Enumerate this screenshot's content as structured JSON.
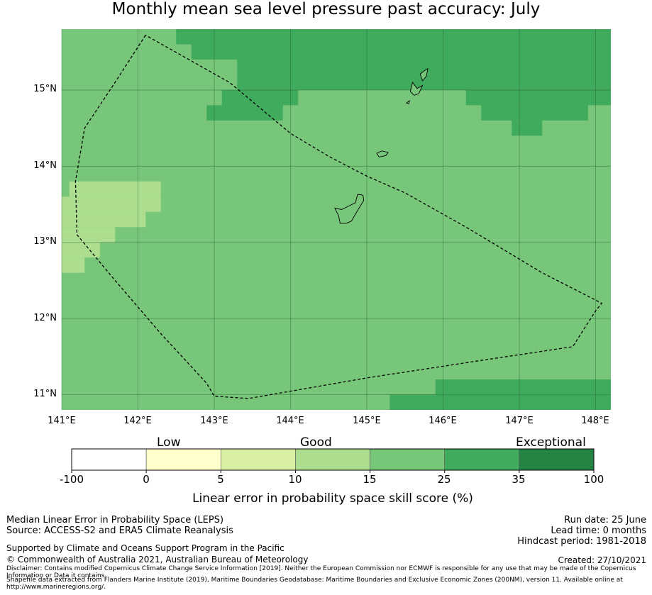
{
  "title": "Monthly mean sea level pressure past accuracy: July",
  "axes": {
    "lat_ticks": [
      "15°N",
      "14°N",
      "13°N",
      "12°N",
      "11°N"
    ],
    "lon_ticks": [
      "141°E",
      "142°E",
      "143°E",
      "144°E",
      "145°E",
      "146°E",
      "147°E",
      "148°E"
    ]
  },
  "map_data": {
    "lon_range": [
      141.0,
      148.2
    ],
    "lat_range": [
      10.8,
      15.8
    ],
    "lat_tick_values": [
      15,
      14,
      13,
      12,
      11
    ],
    "lon_tick_values": [
      141,
      142,
      143,
      144,
      145,
      146,
      147,
      148
    ],
    "base_category": 4,
    "regions": [
      {
        "category": 5,
        "lon": [
          142.5,
          148.2
        ],
        "lat": [
          15.6,
          15.8
        ]
      },
      {
        "category": 5,
        "lon": [
          142.7,
          148.2
        ],
        "lat": [
          15.4,
          15.6
        ]
      },
      {
        "category": 5,
        "lon": [
          143.3,
          148.2
        ],
        "lat": [
          15.0,
          15.4
        ]
      },
      {
        "category": 5,
        "lon": [
          143.1,
          144.1
        ],
        "lat": [
          14.8,
          15.0
        ]
      },
      {
        "category": 5,
        "lon": [
          142.9,
          143.9
        ],
        "lat": [
          14.6,
          14.8
        ]
      },
      {
        "category": 5,
        "lon": [
          146.3,
          148.2
        ],
        "lat": [
          14.8,
          15.0
        ]
      },
      {
        "category": 5,
        "lon": [
          146.5,
          147.9
        ],
        "lat": [
          14.6,
          14.8
        ]
      },
      {
        "category": 5,
        "lon": [
          146.9,
          147.3
        ],
        "lat": [
          14.4,
          14.6
        ]
      },
      {
        "category": 3,
        "lon": [
          141.1,
          142.3
        ],
        "lat": [
          13.6,
          13.8
        ]
      },
      {
        "category": 3,
        "lon": [
          141.0,
          142.3
        ],
        "lat": [
          13.4,
          13.6
        ]
      },
      {
        "category": 3,
        "lon": [
          141.0,
          142.1
        ],
        "lat": [
          13.2,
          13.4
        ]
      },
      {
        "category": 3,
        "lon": [
          141.0,
          141.7
        ],
        "lat": [
          13.0,
          13.2
        ]
      },
      {
        "category": 3,
        "lon": [
          141.0,
          141.5
        ],
        "lat": [
          12.8,
          13.0
        ]
      },
      {
        "category": 3,
        "lon": [
          141.0,
          141.3
        ],
        "lat": [
          12.6,
          12.8
        ]
      },
      {
        "category": 5,
        "lon": [
          145.9,
          148.2
        ],
        "lat": [
          11.0,
          11.2
        ]
      },
      {
        "category": 5,
        "lon": [
          145.3,
          148.2
        ],
        "lat": [
          10.8,
          11.0
        ]
      }
    ],
    "eez_boundary": [
      [
        142.1,
        15.72
      ],
      [
        141.7,
        15.1
      ],
      [
        141.3,
        14.5
      ],
      [
        141.18,
        13.8
      ],
      [
        141.2,
        13.1
      ],
      [
        141.7,
        12.5
      ],
      [
        142.3,
        11.8
      ],
      [
        142.9,
        11.15
      ],
      [
        143.0,
        10.98
      ],
      [
        143.45,
        10.95
      ],
      [
        145.0,
        11.22
      ],
      [
        146.5,
        11.45
      ],
      [
        147.7,
        11.63
      ],
      [
        148.0,
        12.1
      ],
      [
        148.08,
        12.2
      ],
      [
        147.3,
        12.6
      ],
      [
        146.3,
        13.2
      ],
      [
        145.5,
        13.65
      ],
      [
        145.0,
        13.87
      ],
      [
        144.5,
        14.13
      ],
      [
        144.0,
        14.43
      ],
      [
        143.2,
        15.1
      ],
      [
        142.1,
        15.72
      ]
    ],
    "islands": [
      [
        [
          144.67,
          13.43
        ],
        [
          144.85,
          13.52
        ],
        [
          144.88,
          13.63
        ],
        [
          144.95,
          13.62
        ],
        [
          144.96,
          13.55
        ],
        [
          144.88,
          13.42
        ],
        [
          144.8,
          13.28
        ],
        [
          144.73,
          13.25
        ],
        [
          144.65,
          13.25
        ],
        [
          144.63,
          13.35
        ],
        [
          144.58,
          13.45
        ],
        [
          144.67,
          13.43
        ]
      ],
      [
        [
          145.13,
          14.17
        ],
        [
          145.2,
          14.2
        ],
        [
          145.28,
          14.18
        ],
        [
          145.25,
          14.14
        ],
        [
          145.16,
          14.12
        ],
        [
          145.13,
          14.17
        ]
      ],
      [
        [
          145.6,
          15.1
        ],
        [
          145.66,
          15.02
        ],
        [
          145.73,
          15.06
        ],
        [
          145.68,
          14.95
        ],
        [
          145.62,
          14.93
        ],
        [
          145.57,
          14.98
        ],
        [
          145.6,
          15.1
        ]
      ],
      [
        [
          145.7,
          15.21
        ],
        [
          145.75,
          15.25
        ],
        [
          145.8,
          15.28
        ],
        [
          145.78,
          15.18
        ],
        [
          145.73,
          15.12
        ],
        [
          145.7,
          15.21
        ]
      ],
      [
        [
          145.52,
          14.83
        ],
        [
          145.56,
          14.86
        ],
        [
          145.55,
          14.82
        ],
        [
          145.52,
          14.83
        ]
      ]
    ]
  },
  "legend": {
    "category_labels": [
      "Low",
      "Good",
      "Exceptional"
    ],
    "colors": [
      "#ffffff",
      "#ffffcc",
      "#d9f0a3",
      "#addd8e",
      "#78c679",
      "#41ab5d",
      "#238443"
    ],
    "tick_labels": [
      "-100",
      "0",
      "5",
      "10",
      "15",
      "25",
      "35",
      "100"
    ],
    "title": "Linear error in probability space skill score (%)"
  },
  "footer": {
    "left_line1": "Median Linear Error in Probability Space (LEPS)",
    "left_line2": "Source: ACCESS-S2 and ERA5 Climate Reanalysis",
    "right_line1": "Run date: 25 June",
    "right_line2": "Lead time: 0 months",
    "right_line3": "Hindcast period: 1981-2018",
    "supported": "Supported by Climate and Oceans Support Program in the Pacific",
    "copyright": "© Commonwealth of Australia 2021, Australian Bureau of Meteorology",
    "created": "Created: 27/10/2021",
    "disclaimer": "Disclaimer: Contains modified Copernicus Climate Change Service Information [2019]. Neither the European Commission nor ECMWF is responsible for any use that may be made of the Copernicus Information or Data it contains.",
    "shapefile": "Shapefile data extracted from Flanders Marine Institute (2019), Maritime Boundaries Geodatabase: Maritime Boundaries and Exclusive Economic Zones (200NM), version 11. Available online at http://www.marineregions.org/."
  }
}
